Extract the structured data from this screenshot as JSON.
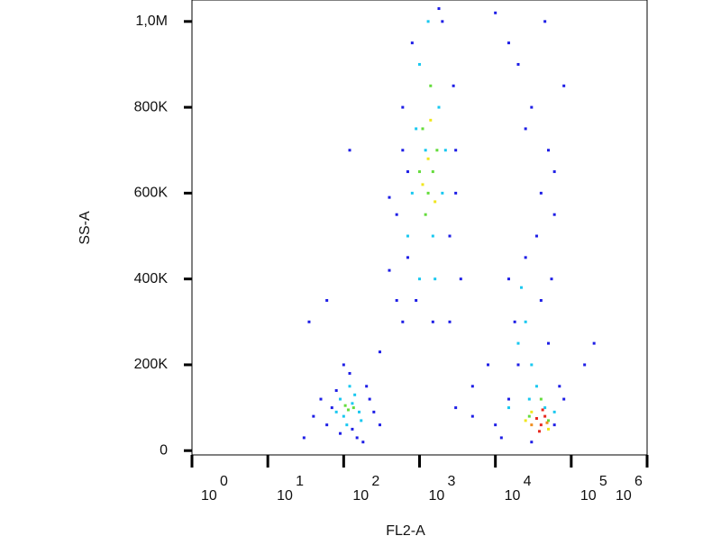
{
  "chart_data": {
    "type": "scatter",
    "x_label": "FL2-A",
    "y_label": "SS-A",
    "xscale": "log",
    "xlim": [
      1,
      1000000
    ],
    "xticks": [
      {
        "value": 1,
        "label": "10",
        "exponent": "0"
      },
      {
        "value": 10,
        "label": "10",
        "exponent": "1"
      },
      {
        "value": 100,
        "label": "10",
        "exponent": "2"
      },
      {
        "value": 1000,
        "label": "10",
        "exponent": "3"
      },
      {
        "value": 10000,
        "label": "10",
        "exponent": "4"
      },
      {
        "value": 100000,
        "label": "10",
        "exponent": "5"
      },
      {
        "value": 1000000,
        "label": "10",
        "exponent": "6"
      }
    ],
    "ylim": [
      -10000,
      1050000
    ],
    "yticks": [
      0,
      {
        "value": 200000,
        "label": "200K"
      },
      {
        "value": 400000,
        "label": "400K"
      },
      {
        "value": 600000,
        "label": "600K"
      },
      {
        "value": 800000,
        "label": "800K"
      },
      {
        "value": 1000000,
        "label": "1,0M"
      }
    ],
    "series": [
      {
        "color": "#1e1ee6",
        "x": [
          60,
          80,
          70,
          150,
          250,
          200,
          90,
          300,
          40,
          120,
          180,
          50,
          220,
          100,
          30,
          130,
          500,
          600,
          700,
          500,
          2500,
          3000,
          600,
          800,
          2000,
          3500,
          400,
          2800,
          700,
          3000,
          1500,
          900,
          2500,
          1800,
          600,
          10000,
          15000,
          60000,
          80000,
          12000,
          50000,
          15000,
          25000,
          40000,
          20000,
          70000,
          30000,
          18000,
          55000,
          20000,
          30000,
          50000,
          40000,
          15000,
          60000,
          25000,
          80000,
          8000,
          5000,
          300,
          35,
          60,
          120,
          400,
          200000,
          150000,
          10000,
          5000,
          3000,
          60000,
          35000,
          45000
        ],
        "values": [
          60000,
          140000,
          100000,
          30000,
          90000,
          150000,
          40000,
          60000,
          80000,
          180000,
          20000,
          120000,
          120000,
          200000,
          30000,
          50000,
          350000,
          300000,
          450000,
          550000,
          500000,
          700000,
          800000,
          950000,
          1000000,
          400000,
          420000,
          850000,
          650000,
          600000,
          300000,
          350000,
          300000,
          1030000,
          700000,
          60000,
          120000,
          60000,
          120000,
          30000,
          250000,
          400000,
          450000,
          350000,
          200000,
          150000,
          20000,
          300000,
          400000,
          900000,
          800000,
          700000,
          600000,
          950000,
          650000,
          750000,
          850000,
          200000,
          150000,
          230000,
          300000,
          350000,
          700000,
          590000,
          250000,
          200000,
          1020000,
          80000,
          100000,
          550000,
          500000,
          1000000
        ]
      },
      {
        "color": "#19c8f0",
        "x": [
          100,
          130,
          90,
          160,
          110,
          80,
          140,
          170,
          120,
          1000,
          1500,
          800,
          1200,
          1800,
          1000,
          2000,
          1300,
          700,
          1600,
          900,
          2200,
          25000,
          30000,
          20000,
          35000,
          15000,
          45000,
          22000,
          28000,
          60000
        ],
        "values": [
          80000,
          110000,
          120000,
          90000,
          60000,
          90000,
          130000,
          70000,
          150000,
          400000,
          500000,
          600000,
          700000,
          800000,
          900000,
          600000,
          1000000,
          500000,
          400000,
          750000,
          700000,
          300000,
          200000,
          250000,
          150000,
          100000,
          100000,
          380000,
          120000,
          90000
        ]
      },
      {
        "color": "#64dc3c",
        "x": [
          115,
          135,
          105,
          1200,
          1500,
          1100,
          1400,
          1700,
          1300,
          1000,
          40000,
          28000,
          50000
        ],
        "values": [
          95000,
          100000,
          105000,
          550000,
          650000,
          750000,
          850000,
          700000,
          600000,
          650000,
          120000,
          80000,
          70000
        ]
      },
      {
        "color": "#f0e61e",
        "x": [
          1300,
          1100,
          1400,
          1600,
          30000,
          50000,
          25000
        ],
        "values": [
          680000,
          620000,
          770000,
          580000,
          90000,
          50000,
          70000
        ]
      },
      {
        "color": "#f08c1e",
        "x": [
          30000,
          48000
        ],
        "values": [
          60000,
          65000
        ]
      },
      {
        "color": "#e8281e",
        "x": [
          35000,
          40000,
          45000,
          38000,
          42000
        ],
        "values": [
          75000,
          60000,
          80000,
          45000,
          95000
        ]
      }
    ]
  }
}
